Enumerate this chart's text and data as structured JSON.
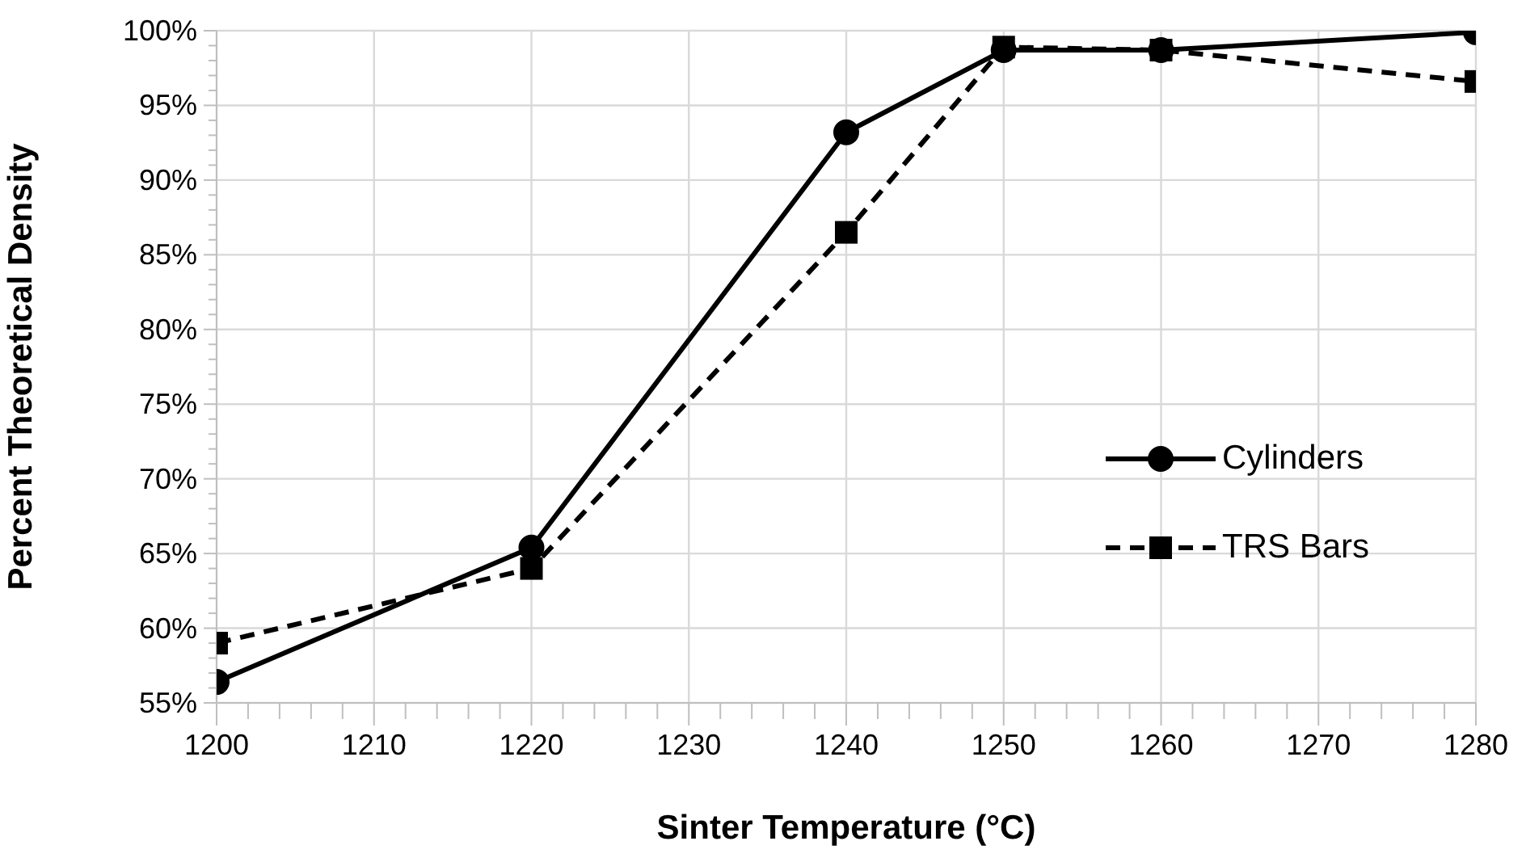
{
  "chart_data": {
    "type": "line",
    "xlabel": "Sinter Temperature (°C)",
    "ylabel": "Percent Theoretical Density",
    "x": [
      1200,
      1220,
      1240,
      1250,
      1260,
      1280
    ],
    "series": [
      {
        "name": "Cylinders",
        "color": "#000000",
        "marker": "circle",
        "line_style": "solid",
        "values": [
          56.4,
          65.4,
          93.2,
          98.7,
          98.7,
          99.9
        ]
      },
      {
        "name": "TRS Bars",
        "color": "#000000",
        "marker": "square",
        "line_style": "dashed",
        "values": [
          59.0,
          64.0,
          86.5,
          98.9,
          98.7,
          96.6
        ]
      }
    ],
    "xlim": [
      1200,
      1280
    ],
    "xticks": [
      1200,
      {
        "value": 1202,
        "label": null
      },
      {
        "value": 1204,
        "label": null
      },
      {
        "value": 1206,
        "label": null
      },
      {
        "value": 1208,
        "label": null
      },
      1210,
      {
        "value": 1212,
        "label": null
      },
      {
        "value": 1214,
        "label": null
      },
      {
        "value": 1216,
        "label": null
      },
      {
        "value": 1218,
        "label": null
      },
      1220,
      {
        "value": 1222,
        "label": null
      },
      {
        "value": 1224,
        "label": null
      },
      {
        "value": 1226,
        "label": null
      },
      {
        "value": 1228,
        "label": null
      },
      1230,
      {
        "value": 1232,
        "label": null
      },
      {
        "value": 1234,
        "label": null
      },
      {
        "value": 1236,
        "label": null
      },
      {
        "value": 1238,
        "label": null
      },
      1240,
      {
        "value": 1242,
        "label": null
      },
      {
        "value": 1244,
        "label": null
      },
      {
        "value": 1246,
        "label": null
      },
      {
        "value": 1248,
        "label": null
      },
      1250,
      {
        "value": 1252,
        "label": null
      },
      {
        "value": 1254,
        "label": null
      },
      {
        "value": 1256,
        "label": null
      },
      {
        "value": 1258,
        "label": null
      },
      1260,
      {
        "value": 1262,
        "label": null
      },
      {
        "value": 1264,
        "label": null
      },
      {
        "value": 1266,
        "label": null
      },
      {
        "value": 1268,
        "label": null
      },
      1270,
      {
        "value": 1272,
        "label": null
      },
      {
        "value": 1274,
        "label": null
      },
      {
        "value": 1276,
        "label": null
      },
      {
        "value": 1278,
        "label": null
      },
      1280
    ],
    "ylim": [
      55,
      100
    ],
    "yticks": [
      {
        "value": 55,
        "label": "55%"
      },
      {
        "value": 56,
        "label": null
      },
      {
        "value": 57,
        "label": null
      },
      {
        "value": 58,
        "label": null
      },
      {
        "value": 59,
        "label": null
      },
      {
        "value": 60,
        "label": "60%"
      },
      {
        "value": 61,
        "label": null
      },
      {
        "value": 62,
        "label": null
      },
      {
        "value": 63,
        "label": null
      },
      {
        "value": 64,
        "label": null
      },
      {
        "value": 65,
        "label": "65%"
      },
      {
        "value": 66,
        "label": null
      },
      {
        "value": 67,
        "label": null
      },
      {
        "value": 68,
        "label": null
      },
      {
        "value": 69,
        "label": null
      },
      {
        "value": 70,
        "label": "70%"
      },
      {
        "value": 71,
        "label": null
      },
      {
        "value": 72,
        "label": null
      },
      {
        "value": 73,
        "label": null
      },
      {
        "value": 74,
        "label": null
      },
      {
        "value": 75,
        "label": "75%"
      },
      {
        "value": 76,
        "label": null
      },
      {
        "value": 77,
        "label": null
      },
      {
        "value": 78,
        "label": null
      },
      {
        "value": 79,
        "label": null
      },
      {
        "value": 80,
        "label": "80%"
      },
      {
        "value": 81,
        "label": null
      },
      {
        "value": 82,
        "label": null
      },
      {
        "value": 83,
        "label": null
      },
      {
        "value": 84,
        "label": null
      },
      {
        "value": 85,
        "label": "85%"
      },
      {
        "value": 86,
        "label": null
      },
      {
        "value": 87,
        "label": null
      },
      {
        "value": 88,
        "label": null
      },
      {
        "value": 89,
        "label": null
      },
      {
        "value": 90,
        "label": "90%"
      },
      {
        "value": 91,
        "label": null
      },
      {
        "value": 92,
        "label": null
      },
      {
        "value": 93,
        "label": null
      },
      {
        "value": 94,
        "label": null
      },
      {
        "value": 95,
        "label": "95%"
      },
      {
        "value": 96,
        "label": null
      },
      {
        "value": 97,
        "label": null
      },
      {
        "value": 98,
        "label": null
      },
      {
        "value": 99,
        "label": null
      },
      {
        "value": 100,
        "label": "100%"
      }
    ],
    "grid": true,
    "legend": "right"
  }
}
